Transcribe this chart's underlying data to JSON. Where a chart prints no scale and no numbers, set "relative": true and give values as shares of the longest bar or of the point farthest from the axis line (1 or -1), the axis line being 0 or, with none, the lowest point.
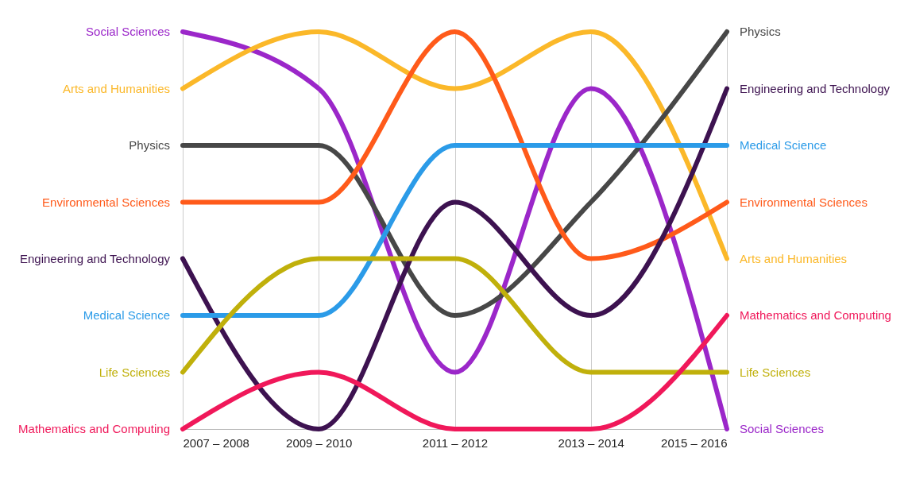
{
  "chart_data": {
    "type": "line",
    "relative": true,
    "grid": "x",
    "categories": [
      "2007 – 2008",
      "2009 – 2010",
      "2011 – 2012",
      "2013 – 2014",
      "2015 – 2016"
    ],
    "series": [
      {
        "name": "Social Sciences",
        "color": "#9b27c9",
        "values": [
          1,
          0.857,
          0.143,
          0.857,
          0
        ]
      },
      {
        "name": "Arts and Humanities",
        "color": "#fbb829",
        "values": [
          0.857,
          1,
          0.857,
          1,
          0.429
        ]
      },
      {
        "name": "Physics",
        "color": "#474747",
        "values": [
          0.714,
          0.714,
          0.286,
          0.571,
          1
        ]
      },
      {
        "name": "Environmental Sciences",
        "color": "#ff5a1a",
        "values": [
          0.571,
          0.571,
          1,
          0.429,
          0.571
        ]
      },
      {
        "name": "Engineering and Technology",
        "color": "#3d1250",
        "values": [
          0.429,
          0,
          0.571,
          0.286,
          0.857
        ]
      },
      {
        "name": "Medical Science",
        "color": "#2b9be8",
        "values": [
          0.286,
          0.286,
          0.714,
          0.714,
          0.714
        ]
      },
      {
        "name": "Life Sciences",
        "color": "#c0b00b",
        "values": [
          0.143,
          0.429,
          0.429,
          0.143,
          0.143
        ]
      },
      {
        "name": "Mathematics and Computing",
        "color": "#f0185a",
        "values": [
          0,
          0.143,
          0,
          0,
          0.286
        ]
      }
    ]
  }
}
